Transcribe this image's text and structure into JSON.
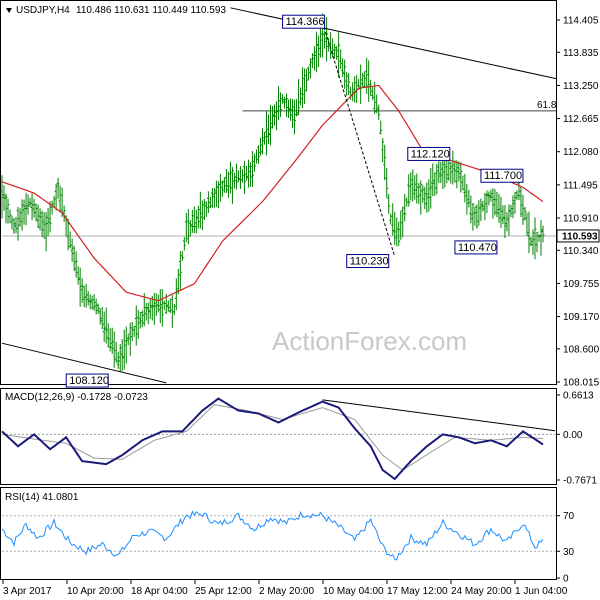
{
  "colors": {
    "price_bars": "#008000",
    "ma_line": "#d42020",
    "macd_line": "#1a1a7a",
    "macd_signal": "#999999",
    "rsi_line": "#1e90ff",
    "trendlines": "#000000",
    "callout_border": "#00008b",
    "level_line": "#b0b0b0",
    "frame": "#000000"
  },
  "header": {
    "symbol_text": "USDJPY,H4",
    "ohlc_text": "110.486 110.631 110.449 110.593",
    "current_price_label": "110.593"
  },
  "watermark_text": "ActionForex.com",
  "chart_data": [
    {
      "type": "ohlc",
      "title": "USDJPY,H4  110.486 110.631 110.449 110.593",
      "y_ticks": [
        "114.405",
        "113.835",
        "113.250",
        "112.665",
        "112.080",
        "111.495",
        "110.910",
        "110.340",
        "109.755",
        "109.170",
        "108.600",
        "108.015"
      ],
      "ylim": [
        108.015,
        114.405
      ],
      "x_ticks": [
        "3 Apr 2017",
        "10 Apr 20:00",
        "18 Apr 04:00",
        "25 Apr 12:00",
        "2 May 20:00",
        "10 May 04:00",
        "17 May 12:00",
        "24 May 20:00",
        "1 Jun 04:00"
      ],
      "x_range_bars": [
        0,
        270
      ],
      "current_price": 110.593,
      "fib_level": {
        "label": "61.8",
        "value": 112.8
      },
      "annotations": [
        {
          "text": "114.366",
          "value": 114.366,
          "bar": 160
        },
        {
          "text": "112.120",
          "value": 112.12,
          "bar": 210
        },
        {
          "text": "111.700",
          "value": 111.7,
          "bar": 255
        },
        {
          "text": "110.470",
          "value": 110.47,
          "bar": 252
        },
        {
          "text": "110.230",
          "value": 110.23,
          "bar": 196
        },
        {
          "text": "108.120",
          "value": 108.12,
          "bar": 58
        }
      ],
      "price_keypoints": [
        {
          "bar": 0,
          "value": 111.3
        },
        {
          "bar": 6,
          "value": 110.75
        },
        {
          "bar": 14,
          "value": 111.2
        },
        {
          "bar": 22,
          "value": 110.7
        },
        {
          "bar": 28,
          "value": 111.45
        },
        {
          "bar": 34,
          "value": 110.5
        },
        {
          "bar": 40,
          "value": 109.6
        },
        {
          "bar": 48,
          "value": 109.3
        },
        {
          "bar": 58,
          "value": 108.4
        },
        {
          "bar": 64,
          "value": 108.8
        },
        {
          "bar": 72,
          "value": 109.25
        },
        {
          "bar": 78,
          "value": 109.4
        },
        {
          "bar": 86,
          "value": 109.3
        },
        {
          "bar": 92,
          "value": 110.7
        },
        {
          "bar": 100,
          "value": 111.0
        },
        {
          "bar": 108,
          "value": 111.4
        },
        {
          "bar": 116,
          "value": 111.6
        },
        {
          "bar": 124,
          "value": 111.7
        },
        {
          "bar": 132,
          "value": 112.4
        },
        {
          "bar": 140,
          "value": 113.0
        },
        {
          "bar": 146,
          "value": 112.7
        },
        {
          "bar": 154,
          "value": 113.6
        },
        {
          "bar": 160,
          "value": 114.1
        },
        {
          "bar": 168,
          "value": 113.8
        },
        {
          "bar": 174,
          "value": 113.1
        },
        {
          "bar": 182,
          "value": 113.4
        },
        {
          "bar": 188,
          "value": 112.8
        },
        {
          "bar": 194,
          "value": 110.9
        },
        {
          "bar": 198,
          "value": 110.6
        },
        {
          "bar": 204,
          "value": 111.5
        },
        {
          "bar": 212,
          "value": 111.3
        },
        {
          "bar": 220,
          "value": 111.8
        },
        {
          "bar": 228,
          "value": 111.7
        },
        {
          "bar": 236,
          "value": 110.9
        },
        {
          "bar": 244,
          "value": 111.3
        },
        {
          "bar": 252,
          "value": 110.8
        },
        {
          "bar": 258,
          "value": 111.4
        },
        {
          "bar": 264,
          "value": 110.5
        },
        {
          "bar": 270,
          "value": 110.59
        }
      ],
      "ma_keypoints": [
        {
          "bar": 0,
          "value": 111.55
        },
        {
          "bar": 16,
          "value": 111.35
        },
        {
          "bar": 30,
          "value": 111.0
        },
        {
          "bar": 46,
          "value": 110.2
        },
        {
          "bar": 62,
          "value": 109.6
        },
        {
          "bar": 78,
          "value": 109.45
        },
        {
          "bar": 96,
          "value": 109.75
        },
        {
          "bar": 110,
          "value": 110.5
        },
        {
          "bar": 130,
          "value": 111.2
        },
        {
          "bar": 146,
          "value": 111.9
        },
        {
          "bar": 160,
          "value": 112.55
        },
        {
          "bar": 178,
          "value": 113.2
        },
        {
          "bar": 188,
          "value": 113.25
        },
        {
          "bar": 198,
          "value": 112.8
        },
        {
          "bar": 210,
          "value": 112.1
        },
        {
          "bar": 226,
          "value": 111.9
        },
        {
          "bar": 244,
          "value": 111.7
        },
        {
          "bar": 260,
          "value": 111.45
        },
        {
          "bar": 270,
          "value": 111.2
        }
      ],
      "trendline_upper": [
        {
          "bar": 114,
          "value": 114.62
        },
        {
          "bar": 270,
          "value": 113.37
        }
      ],
      "trendline_lower": [
        {
          "bar": 0,
          "value": 108.7
        },
        {
          "bar": 82,
          "value": 108.0
        }
      ],
      "dotted_line": [
        {
          "bar": 160,
          "value": 114.36
        },
        {
          "bar": 196,
          "value": 110.23
        }
      ]
    },
    {
      "type": "line",
      "title": "MACD(12,26,9) -0.1728 -0.0723",
      "y_ticks": [
        "0.6613",
        "0.00",
        "-0.7671"
      ],
      "ylim": [
        -0.7671,
        0.6613
      ],
      "series": [
        {
          "name": "MACD",
          "keypoints": [
            {
              "bar": 0,
              "value": 0.05
            },
            {
              "bar": 8,
              "value": -0.2
            },
            {
              "bar": 16,
              "value": 0.0
            },
            {
              "bar": 24,
              "value": -0.25
            },
            {
              "bar": 32,
              "value": -0.05
            },
            {
              "bar": 40,
              "value": -0.45
            },
            {
              "bar": 52,
              "value": -0.5
            },
            {
              "bar": 60,
              "value": -0.35
            },
            {
              "bar": 70,
              "value": -0.1
            },
            {
              "bar": 80,
              "value": 0.05
            },
            {
              "bar": 90,
              "value": 0.05
            },
            {
              "bar": 100,
              "value": 0.4
            },
            {
              "bar": 108,
              "value": 0.6
            },
            {
              "bar": 118,
              "value": 0.4
            },
            {
              "bar": 128,
              "value": 0.35
            },
            {
              "bar": 138,
              "value": 0.2
            },
            {
              "bar": 150,
              "value": 0.4
            },
            {
              "bar": 160,
              "value": 0.55
            },
            {
              "bar": 168,
              "value": 0.45
            },
            {
              "bar": 176,
              "value": 0.1
            },
            {
              "bar": 184,
              "value": -0.2
            },
            {
              "bar": 190,
              "value": -0.6
            },
            {
              "bar": 196,
              "value": -0.75
            },
            {
              "bar": 204,
              "value": -0.45
            },
            {
              "bar": 212,
              "value": -0.2
            },
            {
              "bar": 220,
              "value": 0.0
            },
            {
              "bar": 228,
              "value": -0.05
            },
            {
              "bar": 236,
              "value": -0.15
            },
            {
              "bar": 244,
              "value": -0.1
            },
            {
              "bar": 252,
              "value": -0.2
            },
            {
              "bar": 260,
              "value": 0.05
            },
            {
              "bar": 270,
              "value": -0.17
            }
          ]
        },
        {
          "name": "Signal",
          "keypoints": [
            {
              "bar": 0,
              "value": 0.0
            },
            {
              "bar": 16,
              "value": -0.08
            },
            {
              "bar": 32,
              "value": -0.15
            },
            {
              "bar": 46,
              "value": -0.4
            },
            {
              "bar": 60,
              "value": -0.42
            },
            {
              "bar": 76,
              "value": -0.1
            },
            {
              "bar": 92,
              "value": 0.05
            },
            {
              "bar": 106,
              "value": 0.5
            },
            {
              "bar": 122,
              "value": 0.4
            },
            {
              "bar": 140,
              "value": 0.25
            },
            {
              "bar": 160,
              "value": 0.45
            },
            {
              "bar": 176,
              "value": 0.25
            },
            {
              "bar": 190,
              "value": -0.35
            },
            {
              "bar": 200,
              "value": -0.6
            },
            {
              "bar": 214,
              "value": -0.3
            },
            {
              "bar": 226,
              "value": -0.05
            },
            {
              "bar": 244,
              "value": -0.1
            },
            {
              "bar": 260,
              "value": -0.05
            },
            {
              "bar": 270,
              "value": -0.07
            }
          ]
        }
      ],
      "trendline": [
        {
          "bar": 160,
          "value": 0.58
        },
        {
          "bar": 270,
          "value": 0.06
        }
      ]
    },
    {
      "type": "line",
      "title": "RSI(14) 41.0801",
      "y_ticks": [
        "70",
        "30",
        "0"
      ],
      "ylim": [
        0,
        100
      ],
      "levels": [
        70,
        30
      ],
      "series": [
        {
          "name": "RSI(14)",
          "keypoints": [
            {
              "bar": 0,
              "value": 55
            },
            {
              "bar": 6,
              "value": 40
            },
            {
              "bar": 12,
              "value": 60
            },
            {
              "bar": 18,
              "value": 45
            },
            {
              "bar": 26,
              "value": 62
            },
            {
              "bar": 34,
              "value": 40
            },
            {
              "bar": 42,
              "value": 30
            },
            {
              "bar": 50,
              "value": 38
            },
            {
              "bar": 58,
              "value": 25
            },
            {
              "bar": 66,
              "value": 48
            },
            {
              "bar": 74,
              "value": 52
            },
            {
              "bar": 82,
              "value": 45
            },
            {
              "bar": 92,
              "value": 70
            },
            {
              "bar": 100,
              "value": 72
            },
            {
              "bar": 108,
              "value": 60
            },
            {
              "bar": 118,
              "value": 70
            },
            {
              "bar": 126,
              "value": 55
            },
            {
              "bar": 134,
              "value": 68
            },
            {
              "bar": 142,
              "value": 62
            },
            {
              "bar": 150,
              "value": 72
            },
            {
              "bar": 160,
              "value": 70
            },
            {
              "bar": 168,
              "value": 58
            },
            {
              "bar": 176,
              "value": 42
            },
            {
              "bar": 184,
              "value": 65
            },
            {
              "bar": 190,
              "value": 35
            },
            {
              "bar": 196,
              "value": 20
            },
            {
              "bar": 204,
              "value": 45
            },
            {
              "bar": 212,
              "value": 38
            },
            {
              "bar": 220,
              "value": 62
            },
            {
              "bar": 228,
              "value": 50
            },
            {
              "bar": 236,
              "value": 38
            },
            {
              "bar": 244,
              "value": 55
            },
            {
              "bar": 252,
              "value": 40
            },
            {
              "bar": 260,
              "value": 62
            },
            {
              "bar": 266,
              "value": 35
            },
            {
              "bar": 270,
              "value": 41
            }
          ]
        }
      ]
    }
  ]
}
